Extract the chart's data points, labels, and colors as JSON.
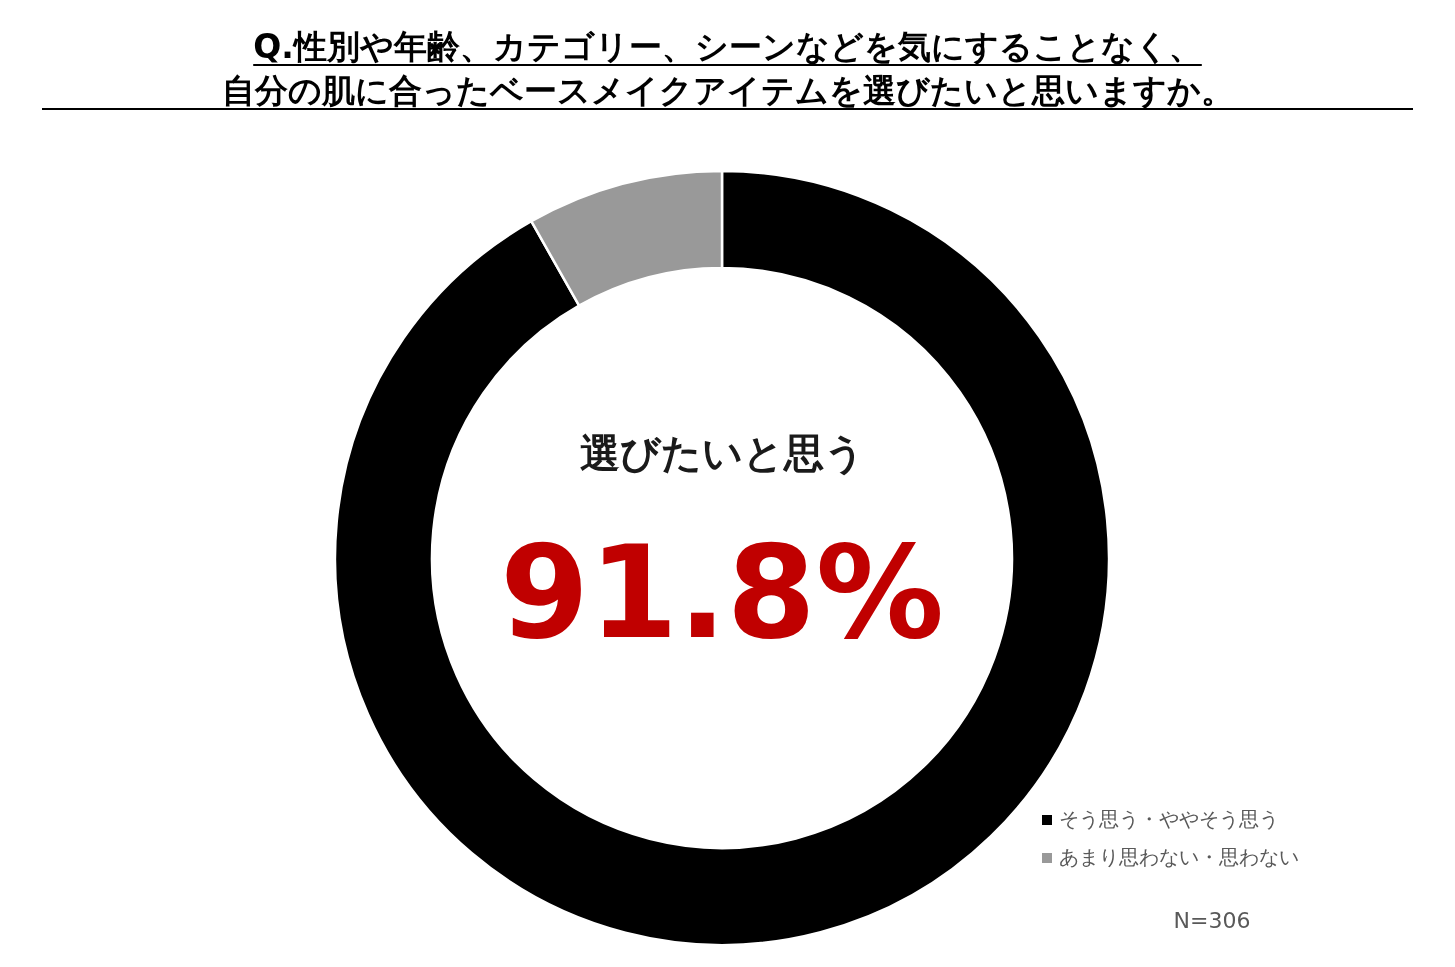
{
  "chart_data": {
    "type": "donut",
    "title": "Q.性別や年齢、カテゴリー、シーンなどを気にすることなく、自分の肌に合ったベースメイクアイテムを選びたいと思いますか。",
    "categories": [
      "そう思う・ややそう思う",
      "あまり思わない・思わない"
    ],
    "values": [
      91.8,
      8.2
    ],
    "colors": [
      "#000000",
      "#999999"
    ],
    "legend": "bottom right",
    "annotations": [
      "選びたいと思う",
      "91.8%",
      "N=306"
    ]
  }
}
